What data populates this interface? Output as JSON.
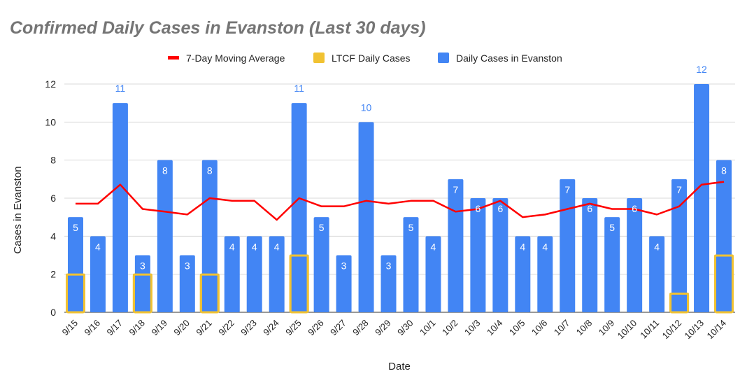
{
  "chart_data": {
    "type": "bar",
    "title": "Confirmed Daily Cases in Evanston (Last 30 days)",
    "xlabel": "Date",
    "ylabel": "Cases in Evanston",
    "ylim": [
      0,
      12
    ],
    "yticks": [
      0,
      2,
      4,
      6,
      8,
      10,
      12
    ],
    "grid": true,
    "legend_position": "top",
    "categories": [
      "9/15",
      "9/16",
      "9/17",
      "9/18",
      "9/19",
      "9/20",
      "9/21",
      "9/22",
      "9/23",
      "9/24",
      "9/25",
      "9/26",
      "9/27",
      "9/28",
      "9/29",
      "9/30",
      "10/1",
      "10/2",
      "10/3",
      "10/4",
      "10/5",
      "10/6",
      "10/7",
      "10/8",
      "10/9",
      "10/10",
      "10/11",
      "10/12",
      "10/13",
      "10/14"
    ],
    "series": [
      {
        "name": "7-Day Moving Average",
        "type": "line",
        "color": "#ff0000",
        "values": [
          5.71,
          5.71,
          6.71,
          5.43,
          5.29,
          5.14,
          6.0,
          5.86,
          5.86,
          4.86,
          6.0,
          5.57,
          5.57,
          5.86,
          5.71,
          5.86,
          5.86,
          5.29,
          5.43,
          5.86,
          5.0,
          5.14,
          5.43,
          5.71,
          5.43,
          5.43,
          5.14,
          5.57,
          6.71,
          6.86
        ]
      },
      {
        "name": "LTCF Daily Cases",
        "type": "bar",
        "color": "#f1c232",
        "values": [
          2,
          0,
          0,
          2,
          0,
          0,
          2,
          0,
          0,
          0,
          3,
          0,
          0,
          0,
          0,
          0,
          0,
          0,
          0,
          0,
          0,
          0,
          0,
          0,
          0,
          0,
          0,
          1,
          0,
          3
        ]
      },
      {
        "name": "Daily Cases in Evanston",
        "type": "bar",
        "color": "#4285f4",
        "values": [
          5,
          4,
          11,
          3,
          8,
          3,
          8,
          4,
          4,
          4,
          11,
          5,
          3,
          10,
          3,
          5,
          4,
          7,
          6,
          6,
          4,
          4,
          7,
          6,
          5,
          6,
          4,
          7,
          12,
          8
        ]
      }
    ]
  }
}
